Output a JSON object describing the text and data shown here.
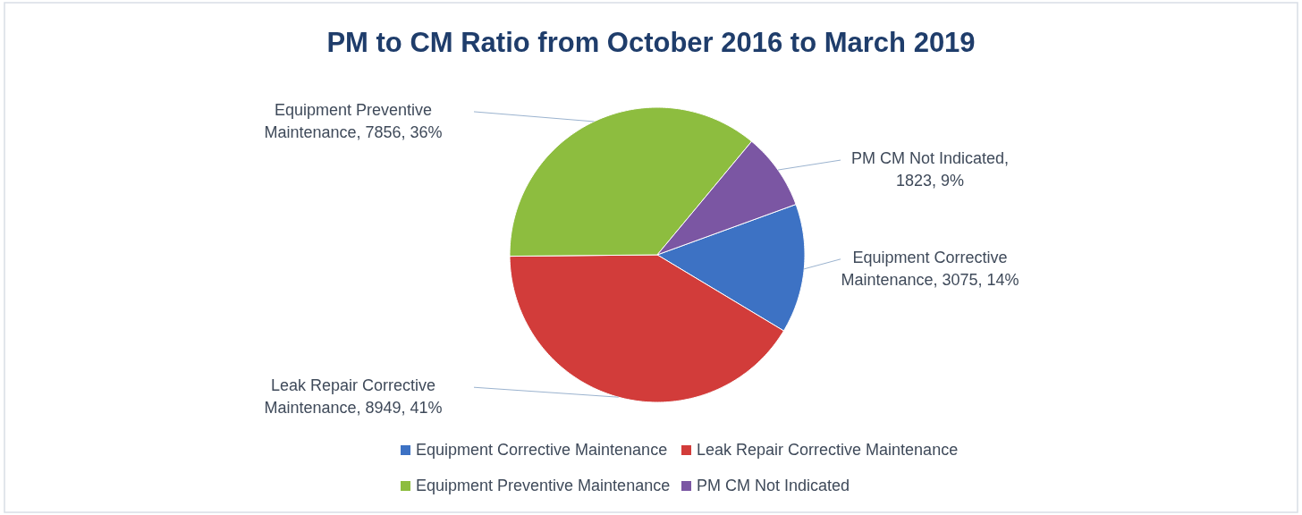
{
  "chart_data": {
    "type": "pie",
    "title": "PM to CM Ratio from October 2016 to March 2019",
    "categories": [
      "Equipment Corrective Maintenance",
      "Leak Repair Corrective Maintenance",
      "Equipment Preventive Maintenance",
      "PM CM Not Indicated"
    ],
    "values": [
      3075,
      8949,
      7856,
      1823
    ],
    "colors": [
      "#3d72c4",
      "#d23c3a",
      "#8dbd3f",
      "#7b56a3"
    ],
    "value_labels": [
      "Equipment Corrective Maintenance, 3075, 14%",
      "Leak Repair Corrective Maintenance, 8949, 41%",
      "Equipment Preventive Maintenance, 7856, 36%",
      "PM CM Not Indicated, 1823, 9%"
    ],
    "legend": "bottom"
  }
}
